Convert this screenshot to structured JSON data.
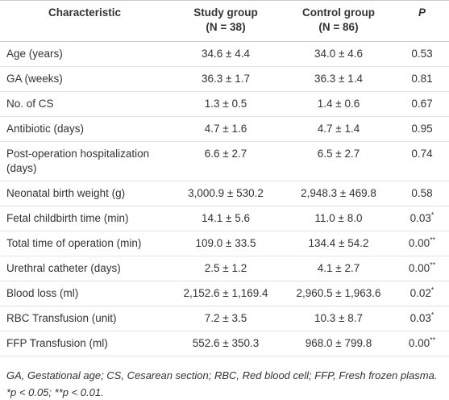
{
  "table": {
    "header": [
      {
        "title": "Characteristic"
      },
      {
        "title": "Study group",
        "sub": "(N = 38)"
      },
      {
        "title": "Control group",
        "sub": "(N = 86)"
      },
      {
        "title": "P"
      }
    ],
    "rows": [
      {
        "label": "Age (years)",
        "study": "34.6 ± 4.4",
        "control": "34.0 ± 4.6",
        "p": "0.53"
      },
      {
        "label": "GA (weeks)",
        "study": "36.3 ± 1.7",
        "control": "36.3 ± 1.4",
        "p": "0.81"
      },
      {
        "label": "No. of CS",
        "study": "1.3 ± 0.5",
        "control": "1.4 ± 0.6",
        "p": "0.67"
      },
      {
        "label": "Antibiotic (days)",
        "study": "4.7 ± 1.6",
        "control": "4.7 ± 1.4",
        "p": "0.95"
      },
      {
        "label": "Post-operation hospitalization (days)",
        "study": "6.6 ± 2.7",
        "control": "6.5 ± 2.7",
        "p": "0.74"
      },
      {
        "label": "Neonatal birth weight (g)",
        "study": "3,000.9 ± 530.2",
        "control": "2,948.3 ± 469.8",
        "p": "0.58"
      },
      {
        "label": "Fetal childbirth time (min)",
        "study": "14.1 ± 5.6",
        "control": "11.0 ± 8.0",
        "p": "0.03",
        "sig": "*"
      },
      {
        "label": "Total time of operation (min)",
        "study": "109.0 ± 33.5",
        "control": "134.4 ± 54.2",
        "p": "0.00",
        "sig": "**"
      },
      {
        "label": "Urethral catheter (days)",
        "study": "2.5 ± 1.2",
        "control": "4.1 ± 2.7",
        "p": "0.00",
        "sig": "**"
      },
      {
        "label": "Blood loss (ml)",
        "study": "2,152.6 ± 1,169.4",
        "control": "2,960.5 ± 1,963.6",
        "p": "0.02",
        "sig": "*"
      },
      {
        "label": "RBC Transfusion (unit)",
        "study": "7.2 ± 3.5",
        "control": "10.3 ± 8.7",
        "p": "0.03",
        "sig": "*"
      },
      {
        "label": "FFP Transfusion (ml)",
        "study": "552.6 ± 350.3",
        "control": "968.0 ± 799.8",
        "p": "0.00",
        "sig": "**"
      }
    ],
    "footnotes": [
      "GA, Gestational age; CS, Cesarean section; RBC, Red blood cell; FFP, Fresh frozen plasma.",
      "*p < 0.05; **p < 0.01."
    ]
  }
}
